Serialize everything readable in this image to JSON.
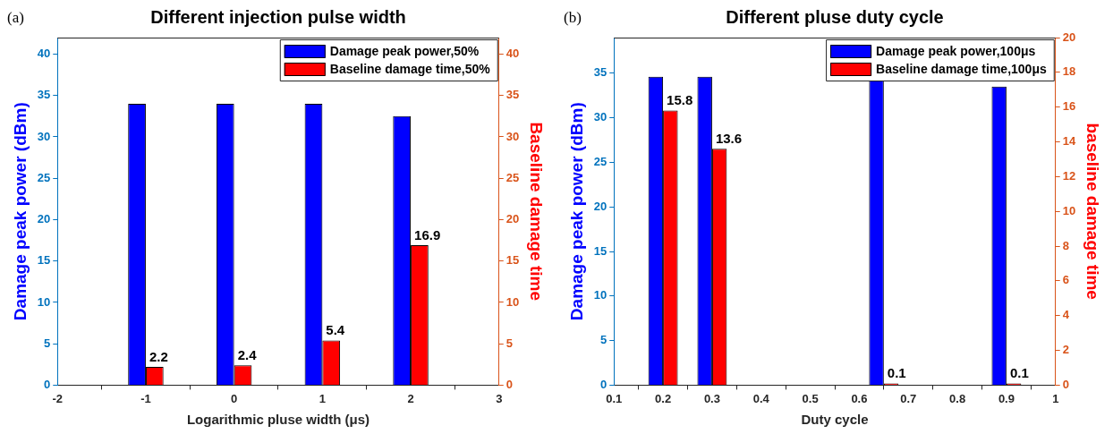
{
  "chart_data": [
    {
      "type": "bar",
      "title": "Different injection pulse width",
      "xlabel": "Logarithmic pluse width (μs)",
      "ylabel": "Damage peak power (dBm)",
      "y2label": "Baseline damage time",
      "annotations": [
        "(a)"
      ],
      "x": [
        -1,
        0,
        1,
        2
      ],
      "xlim": [
        -2,
        3
      ],
      "xticks": [
        -2,
        -1,
        0,
        1,
        2,
        3
      ],
      "ylim": [
        0,
        42
      ],
      "yticks": [
        0,
        5,
        10,
        15,
        20,
        25,
        30,
        35,
        40
      ],
      "y2lim": [
        0,
        42
      ],
      "y2ticks": [
        0,
        5,
        10,
        15,
        20,
        25,
        30,
        35,
        40
      ],
      "legend": "top right",
      "grid": false,
      "series": [
        {
          "name": "Damage peak power,50%",
          "color": "#0000ff",
          "values": [
            34,
            34,
            34,
            32.5
          ]
        },
        {
          "name": "Baseline damage time,50%",
          "color": "#ff0000",
          "axis": "y2",
          "values": [
            2.2,
            2.4,
            5.4,
            16.9
          ],
          "value_labels": [
            "2.2",
            "2.4",
            "5.4",
            "16.9"
          ]
        }
      ]
    },
    {
      "type": "bar",
      "title": "Different pluse duty cycle",
      "xlabel": "Duty cycle",
      "ylabel": "Damage peak power (dBm)",
      "y2label": "baseline damage time",
      "annotations": [
        "(b)"
      ],
      "x": [
        0.2,
        0.3,
        0.65,
        0.9
      ],
      "xlim": [
        0.1,
        1
      ],
      "xticks": [
        0.1,
        0.2,
        0.3,
        0.4,
        0.5,
        0.6,
        0.7,
        0.8,
        0.9,
        1
      ],
      "ylim": [
        0,
        39
      ],
      "yticks": [
        0,
        5,
        10,
        15,
        20,
        25,
        30,
        35
      ],
      "y2lim": [
        0,
        20
      ],
      "y2ticks": [
        0,
        2,
        4,
        6,
        8,
        10,
        12,
        14,
        16,
        18,
        20
      ],
      "legend": "top right",
      "grid": false,
      "series": [
        {
          "name": "Damage peak power,100μs",
          "color": "#0000ff",
          "values": [
            34.6,
            34.6,
            34.2,
            33.5
          ]
        },
        {
          "name": "Baseline damage time,100μs",
          "color": "#ff0000",
          "axis": "y2",
          "values": [
            15.8,
            13.6,
            0.1,
            0.1
          ],
          "value_labels": [
            "15.8",
            "13.6",
            "0.1",
            "0.1"
          ]
        }
      ]
    }
  ]
}
